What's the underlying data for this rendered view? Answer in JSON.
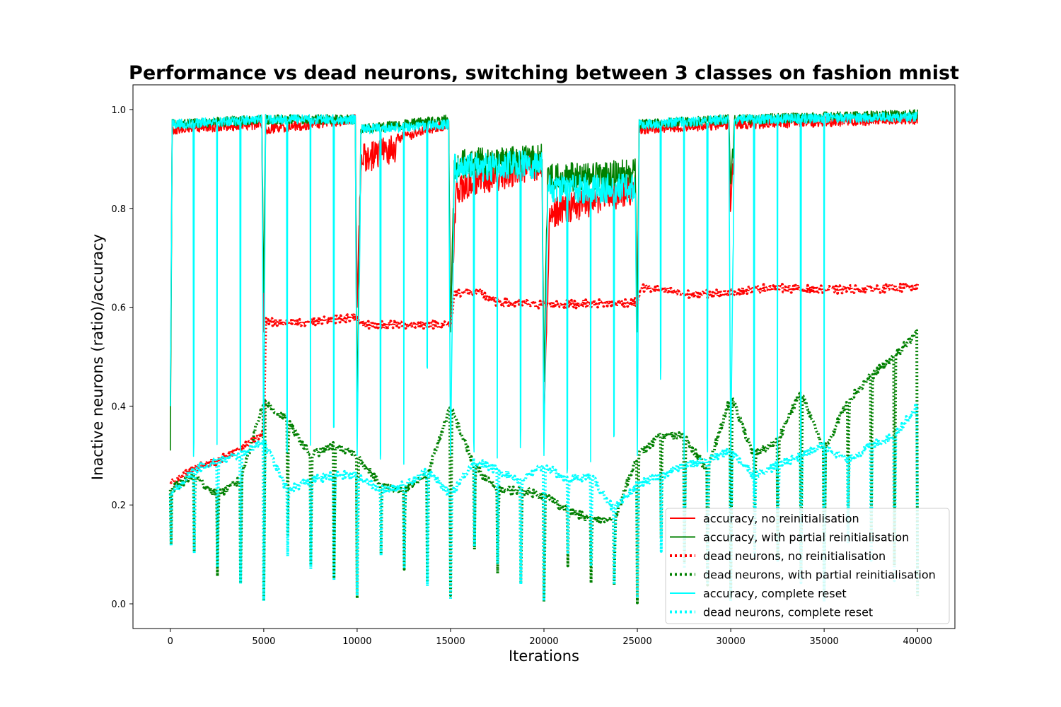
{
  "chart_data": {
    "type": "line",
    "title": "Performance vs dead neurons, switching between 3 classes on fashion mnist",
    "xlabel": "Iterations",
    "ylabel": "Inactive neurons (ratio)/accuracy",
    "xlim": [
      -2000,
      42000
    ],
    "ylim": [
      -0.05,
      1.05
    ],
    "xticks": [
      0,
      5000,
      10000,
      15000,
      20000,
      25000,
      30000,
      35000,
      40000
    ],
    "yticks": [
      0.0,
      0.2,
      0.4,
      0.6,
      0.8,
      1.0
    ],
    "xtick_labels": [
      "0",
      "5000",
      "10000",
      "15000",
      "20000",
      "25000",
      "30000",
      "35000",
      "40000"
    ],
    "ytick_labels": [
      "0.0",
      "0.2",
      "0.4",
      "0.6",
      "0.8",
      "1.0"
    ],
    "grid": false,
    "legend_position": "lower-right",
    "task_switch_every": 5000,
    "reset_period": 1250,
    "series": [
      {
        "name": "accuracy, no reinitialisation",
        "color": "#ff0000",
        "style": "solid",
        "x": [
          0,
          100,
          4900,
          5000,
          5100,
          9900,
          10000,
          10200,
          14900,
          15000,
          15300,
          16000,
          19900,
          20000,
          20300,
          24900,
          25000,
          25100,
          29900,
          30000,
          30200,
          40000
        ],
        "y": [
          0.4,
          0.97,
          0.98,
          0.55,
          0.97,
          0.99,
          0.6,
          0.93,
          0.98,
          0.6,
          0.86,
          0.88,
          0.92,
          0.36,
          0.82,
          0.87,
          0.58,
          0.97,
          0.98,
          0.8,
          0.98,
          0.99
        ]
      },
      {
        "name": "accuracy, with partial reinitialisation",
        "color": "#008000",
        "style": "solid",
        "x": [
          0,
          100,
          4900,
          5000,
          5100,
          9900,
          10000,
          10200,
          14900,
          15000,
          15200,
          19900,
          20000,
          20200,
          24900,
          25000,
          25100,
          29900,
          30000,
          30200,
          40000
        ],
        "y": [
          0.31,
          0.98,
          0.99,
          0.63,
          0.99,
          0.99,
          0.4,
          0.97,
          0.99,
          0.55,
          0.92,
          0.93,
          0.45,
          0.89,
          0.9,
          0.55,
          0.98,
          0.99,
          0.85,
          0.99,
          1.0
        ]
      },
      {
        "name": "dead neurons, no reinitialisation",
        "color": "#ff0000",
        "style": "dotted",
        "x": [
          0,
          1000,
          2500,
          4000,
          5000,
          5100,
          7000,
          10000,
          10100,
          15000,
          15200,
          16500,
          17500,
          20000,
          25000,
          25200,
          28000,
          30000,
          32000,
          35000,
          40000
        ],
        "y": [
          0.24,
          0.27,
          0.29,
          0.32,
          0.35,
          0.57,
          0.57,
          0.58,
          0.565,
          0.565,
          0.63,
          0.63,
          0.61,
          0.605,
          0.61,
          0.64,
          0.625,
          0.63,
          0.64,
          0.635,
          0.64
        ]
      },
      {
        "name": "dead neurons, with partial reinitialisation",
        "color": "#008000",
        "style": "dotted",
        "x": [
          0,
          1250,
          2500,
          3750,
          5000,
          6250,
          7500,
          8750,
          10000,
          11250,
          12500,
          13750,
          15000,
          16250,
          17500,
          18750,
          20000,
          21250,
          22500,
          23750,
          25000,
          26250,
          27500,
          28750,
          30000,
          31250,
          32500,
          33750,
          35000,
          36250,
          37500,
          38750,
          40000
        ],
        "y": [
          0.23,
          0.26,
          0.22,
          0.25,
          0.41,
          0.37,
          0.3,
          0.32,
          0.3,
          0.24,
          0.23,
          0.26,
          0.4,
          0.28,
          0.23,
          0.23,
          0.22,
          0.19,
          0.17,
          0.17,
          0.3,
          0.34,
          0.34,
          0.27,
          0.42,
          0.3,
          0.33,
          0.43,
          0.31,
          0.41,
          0.46,
          0.5,
          0.55
        ],
        "resets_to": 0.01
      },
      {
        "name": "accuracy, complete reset",
        "color": "#00ffff",
        "style": "solid",
        "x": [
          0,
          100,
          4900,
          5000,
          5100,
          9900,
          10000,
          10200,
          14900,
          15000,
          15200,
          19900,
          20000,
          20200,
          24900,
          25000,
          25100,
          29900,
          30000,
          30200,
          40000
        ],
        "y": [
          0.4,
          0.98,
          0.99,
          0.3,
          0.99,
          0.99,
          0.3,
          0.97,
          0.98,
          0.3,
          0.91,
          0.92,
          0.3,
          0.87,
          0.87,
          0.3,
          0.98,
          0.99,
          0.3,
          0.99,
          0.995
        ],
        "dips_at": [
          1250,
          2500,
          3750,
          6250,
          7500,
          8750,
          11250,
          12500,
          13750,
          16250,
          17500,
          18750,
          21250,
          22500,
          23750,
          26250,
          27500,
          28750,
          31250,
          32500,
          33750,
          35000
        ],
        "dip_values": [
          0.34,
          0.38,
          0.35,
          0.33,
          0.33,
          0.36,
          0.31,
          0.29,
          0.5,
          0.33,
          0.3,
          0.36,
          0.28,
          0.34,
          0.36,
          0.5,
          0.31,
          0.34,
          0.26,
          0.31,
          0.34,
          0.3
        ]
      },
      {
        "name": "dead neurons, complete reset",
        "color": "#00ffff",
        "style": "dotted",
        "x": [
          0,
          1250,
          2500,
          3750,
          5000,
          6250,
          7500,
          8750,
          10000,
          11250,
          12500,
          13750,
          15000,
          16250,
          17500,
          18750,
          20000,
          21250,
          22500,
          23750,
          25000,
          26250,
          27500,
          28750,
          30000,
          31250,
          32500,
          33750,
          35000,
          36250,
          37500,
          38750,
          40000
        ],
        "y": [
          0.22,
          0.27,
          0.29,
          0.3,
          0.33,
          0.23,
          0.25,
          0.26,
          0.26,
          0.23,
          0.24,
          0.27,
          0.22,
          0.29,
          0.27,
          0.25,
          0.28,
          0.25,
          0.26,
          0.19,
          0.24,
          0.26,
          0.28,
          0.29,
          0.31,
          0.26,
          0.28,
          0.3,
          0.32,
          0.29,
          0.32,
          0.34,
          0.4
        ],
        "resets_to": 0.01
      }
    ]
  }
}
